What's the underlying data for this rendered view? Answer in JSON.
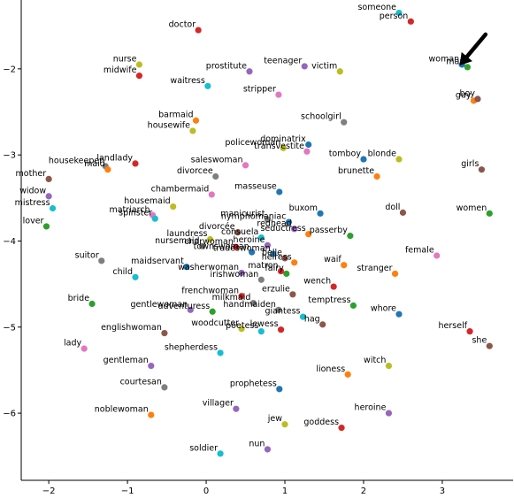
{
  "chart_data": {
    "type": "scatter",
    "title": "",
    "xlabel": "",
    "ylabel": "",
    "xlim": [
      -2.35,
      3.9
    ],
    "ylim": [
      -6.78,
      -1.2
    ],
    "xticks": [
      -2,
      -1,
      0,
      1,
      2,
      3
    ],
    "yticks": [
      -2,
      -3,
      -4,
      -5,
      -6
    ],
    "grid": false,
    "annotation": {
      "type": "arrow",
      "color": "#000000",
      "points_to": "woman",
      "tip": [
        3.22,
        -1.96
      ],
      "tail": [
        3.55,
        -1.6
      ]
    },
    "points": [
      {
        "label": "someone",
        "x": 2.45,
        "y": -1.35,
        "color": "#17becf"
      },
      {
        "label": "person",
        "x": 2.6,
        "y": -1.45,
        "color": "#d62728"
      },
      {
        "label": "doctor",
        "x": -0.1,
        "y": -1.55,
        "color": "#d62728"
      },
      {
        "label": "woman",
        "x": 3.25,
        "y": -1.95,
        "color": "#1f77b4"
      },
      {
        "label": "man",
        "x": 3.32,
        "y": -1.98,
        "color": "#2ca02c"
      },
      {
        "label": "nurse",
        "x": -0.85,
        "y": -1.95,
        "color": "#bcbd22"
      },
      {
        "label": "midwife",
        "x": -0.85,
        "y": -2.08,
        "color": "#d62728"
      },
      {
        "label": "prostitute",
        "x": 0.55,
        "y": -2.03,
        "color": "#9467bd"
      },
      {
        "label": "teenager",
        "x": 1.25,
        "y": -1.97,
        "color": "#9467bd"
      },
      {
        "label": "victim",
        "x": 1.7,
        "y": -2.03,
        "color": "#bcbd22"
      },
      {
        "label": "waitress",
        "x": 0.02,
        "y": -2.2,
        "color": "#17becf"
      },
      {
        "label": "stripper",
        "x": 0.92,
        "y": -2.3,
        "color": "#e377c2"
      },
      {
        "label": "guy",
        "x": 3.4,
        "y": -2.37,
        "color": "#ff7f0e"
      },
      {
        "label": "boy",
        "x": 3.45,
        "y": -2.35,
        "color": "#8c564b"
      },
      {
        "label": "barmaid",
        "x": -0.13,
        "y": -2.6,
        "color": "#ff7f0e"
      },
      {
        "label": "housewife",
        "x": -0.17,
        "y": -2.72,
        "color": "#bcbd22"
      },
      {
        "label": "schoolgirl",
        "x": 1.75,
        "y": -2.62,
        "color": "#7f7f7f"
      },
      {
        "label": "dominatrix",
        "x": 1.3,
        "y": -2.88,
        "color": "#1f77b4"
      },
      {
        "label": "policewoman",
        "x": 0.98,
        "y": -2.92,
        "color": "#bcbd22"
      },
      {
        "label": "transvestite",
        "x": 1.28,
        "y": -2.96,
        "color": "#e377c2"
      },
      {
        "label": "tomboy",
        "x": 2.0,
        "y": -3.05,
        "color": "#1f77b4"
      },
      {
        "label": "blonde",
        "x": 2.45,
        "y": -3.05,
        "color": "#bcbd22"
      },
      {
        "label": "housekeeper",
        "x": -1.28,
        "y": -3.13,
        "color": "#7f7f7f"
      },
      {
        "label": "maid",
        "x": -1.25,
        "y": -3.17,
        "color": "#ff7f0e"
      },
      {
        "label": "landlady",
        "x": -0.9,
        "y": -3.1,
        "color": "#d62728"
      },
      {
        "label": "saleswoman",
        "x": 0.5,
        "y": -3.12,
        "color": "#e377c2"
      },
      {
        "label": "girls",
        "x": 3.5,
        "y": -3.17,
        "color": "#8c564b"
      },
      {
        "label": "brunette",
        "x": 2.17,
        "y": -3.25,
        "color": "#ff7f0e"
      },
      {
        "label": "mother",
        "x": -2.0,
        "y": -3.28,
        "color": "#8c564b"
      },
      {
        "label": "divorcee",
        "x": 0.12,
        "y": -3.25,
        "color": "#7f7f7f"
      },
      {
        "label": "widow",
        "x": -2.0,
        "y": -3.48,
        "color": "#9467bd"
      },
      {
        "label": "chambermaid",
        "x": 0.07,
        "y": -3.46,
        "color": "#e377c2"
      },
      {
        "label": "masseuse",
        "x": 0.93,
        "y": -3.43,
        "color": "#1f77b4"
      },
      {
        "label": "mistress",
        "x": -1.95,
        "y": -3.62,
        "color": "#17becf"
      },
      {
        "label": "housemaid",
        "x": -0.42,
        "y": -3.6,
        "color": "#bcbd22"
      },
      {
        "label": "matriarch",
        "x": -0.68,
        "y": -3.7,
        "color": "#e377c2"
      },
      {
        "label": "spinster",
        "x": -0.65,
        "y": -3.74,
        "color": "#17becf"
      },
      {
        "label": "manicurist",
        "x": 0.78,
        "y": -3.75,
        "color": "#7f7f7f"
      },
      {
        "label": "nymphomaniac",
        "x": 1.05,
        "y": -3.78,
        "color": "#1f77b4"
      },
      {
        "label": "buxom",
        "x": 1.45,
        "y": -3.68,
        "color": "#1f77b4"
      },
      {
        "label": "doll",
        "x": 2.5,
        "y": -3.67,
        "color": "#8c564b"
      },
      {
        "label": "women",
        "x": 3.6,
        "y": -3.68,
        "color": "#2ca02c"
      },
      {
        "label": "lover",
        "x": -2.03,
        "y": -3.83,
        "color": "#2ca02c"
      },
      {
        "label": "divorcée",
        "x": 0.4,
        "y": -3.9,
        "color": "#8c564b"
      },
      {
        "label": "redhead",
        "x": 1.12,
        "y": -3.86,
        "color": "#9467bd"
      },
      {
        "label": "seductress",
        "x": 1.3,
        "y": -3.92,
        "color": "#ff7f0e"
      },
      {
        "label": "passerby",
        "x": 1.83,
        "y": -3.94,
        "color": "#2ca02c"
      },
      {
        "label": "laundress",
        "x": 0.05,
        "y": -3.98,
        "color": "#bcbd22"
      },
      {
        "label": "consuela",
        "x": 0.7,
        "y": -3.96,
        "color": "#17becf"
      },
      {
        "label": "nursemaid",
        "x": -0.05,
        "y": -4.06,
        "color": "#7f7f7f"
      },
      {
        "label": "charwoman",
        "x": 0.38,
        "y": -4.07,
        "color": "#d62728"
      },
      {
        "label": "heroine",
        "x": 0.78,
        "y": -4.05,
        "color": "#9467bd"
      },
      {
        "label": "townswoman",
        "x": 0.58,
        "y": -4.13,
        "color": "#1f77b4"
      },
      {
        "label": "tradeswoman",
        "x": 0.85,
        "y": -4.15,
        "color": "#1f77b4"
      },
      {
        "label": "belle",
        "x": 1.0,
        "y": -4.2,
        "color": "#8c564b"
      },
      {
        "label": "female",
        "x": 2.93,
        "y": -4.17,
        "color": "#e377c2"
      },
      {
        "label": "suitor",
        "x": -1.33,
        "y": -4.23,
        "color": "#7f7f7f"
      },
      {
        "label": "maidservant",
        "x": -0.25,
        "y": -4.3,
        "color": "#1f77b4"
      },
      {
        "label": "heiress",
        "x": 1.12,
        "y": -4.25,
        "color": "#ff7f0e"
      },
      {
        "label": "waif",
        "x": 1.75,
        "y": -4.28,
        "color": "#ff7f0e"
      },
      {
        "label": "washerwoman",
        "x": 0.45,
        "y": -4.37,
        "color": "#9467bd"
      },
      {
        "label": "matron",
        "x": 0.95,
        "y": -4.35,
        "color": "#d62728"
      },
      {
        "label": "fairy",
        "x": 1.02,
        "y": -4.38,
        "color": "#2ca02c"
      },
      {
        "label": "irishwoman",
        "x": 0.7,
        "y": -4.45,
        "color": "#7f7f7f"
      },
      {
        "label": "child",
        "x": -0.9,
        "y": -4.42,
        "color": "#17becf"
      },
      {
        "label": "stranger",
        "x": 2.4,
        "y": -4.38,
        "color": "#ff7f0e"
      },
      {
        "label": "wench",
        "x": 1.62,
        "y": -4.53,
        "color": "#d62728"
      },
      {
        "label": "frenchwoman",
        "x": 0.45,
        "y": -4.64,
        "color": "#d62728"
      },
      {
        "label": "erzulie",
        "x": 1.1,
        "y": -4.62,
        "color": "#8c564b"
      },
      {
        "label": "bride",
        "x": -1.45,
        "y": -4.73,
        "color": "#2ca02c"
      },
      {
        "label": "milkmaid",
        "x": 0.6,
        "y": -4.72,
        "color": "#7f7f7f"
      },
      {
        "label": "temptress",
        "x": 1.87,
        "y": -4.75,
        "color": "#2ca02c"
      },
      {
        "label": "gentlewoman",
        "x": -0.2,
        "y": -4.8,
        "color": "#9467bd"
      },
      {
        "label": "adventuress",
        "x": 0.08,
        "y": -4.82,
        "color": "#2ca02c"
      },
      {
        "label": "handmaiden",
        "x": 0.92,
        "y": -4.8,
        "color": "#7f7f7f"
      },
      {
        "label": "whore",
        "x": 2.45,
        "y": -4.85,
        "color": "#1f77b4"
      },
      {
        "label": "giantess",
        "x": 1.23,
        "y": -4.88,
        "color": "#17becf"
      },
      {
        "label": "woodcutter",
        "x": 0.45,
        "y": -5.02,
        "color": "#bcbd22"
      },
      {
        "label": "poetess",
        "x": 0.7,
        "y": -5.05,
        "color": "#17becf"
      },
      {
        "label": "lewess",
        "x": 0.95,
        "y": -5.03,
        "color": "#d62728"
      },
      {
        "label": "hag",
        "x": 1.48,
        "y": -4.97,
        "color": "#8c564b"
      },
      {
        "label": "englishwoman",
        "x": -0.53,
        "y": -5.07,
        "color": "#8c564b"
      },
      {
        "label": "herself",
        "x": 3.35,
        "y": -5.05,
        "color": "#d62728"
      },
      {
        "label": "she",
        "x": 3.6,
        "y": -5.22,
        "color": "#8c564b"
      },
      {
        "label": "lady",
        "x": -1.55,
        "y": -5.25,
        "color": "#e377c2"
      },
      {
        "label": "shepherdess",
        "x": 0.18,
        "y": -5.3,
        "color": "#17becf"
      },
      {
        "label": "gentleman",
        "x": -0.7,
        "y": -5.45,
        "color": "#9467bd"
      },
      {
        "label": "witch",
        "x": 2.32,
        "y": -5.45,
        "color": "#bcbd22"
      },
      {
        "label": "lioness",
        "x": 1.8,
        "y": -5.55,
        "color": "#ff7f0e"
      },
      {
        "label": "courtesan",
        "x": -0.53,
        "y": -5.7,
        "color": "#7f7f7f"
      },
      {
        "label": "prophetess",
        "x": 0.93,
        "y": -5.72,
        "color": "#1f77b4"
      },
      {
        "label": "villager",
        "x": 0.38,
        "y": -5.95,
        "color": "#9467bd"
      },
      {
        "label": "noblewoman",
        "x": -0.7,
        "y": -6.02,
        "color": "#ff7f0e"
      },
      {
        "label": "heroine",
        "x": 2.32,
        "y": -6.0,
        "color": "#9467bd"
      },
      {
        "label": "jew",
        "x": 1.0,
        "y": -6.13,
        "color": "#bcbd22"
      },
      {
        "label": "goddess",
        "x": 1.72,
        "y": -6.17,
        "color": "#d62728"
      },
      {
        "label": "nun",
        "x": 0.78,
        "y": -6.42,
        "color": "#9467bd"
      },
      {
        "label": "soldier",
        "x": 0.18,
        "y": -6.47,
        "color": "#17becf"
      }
    ]
  }
}
